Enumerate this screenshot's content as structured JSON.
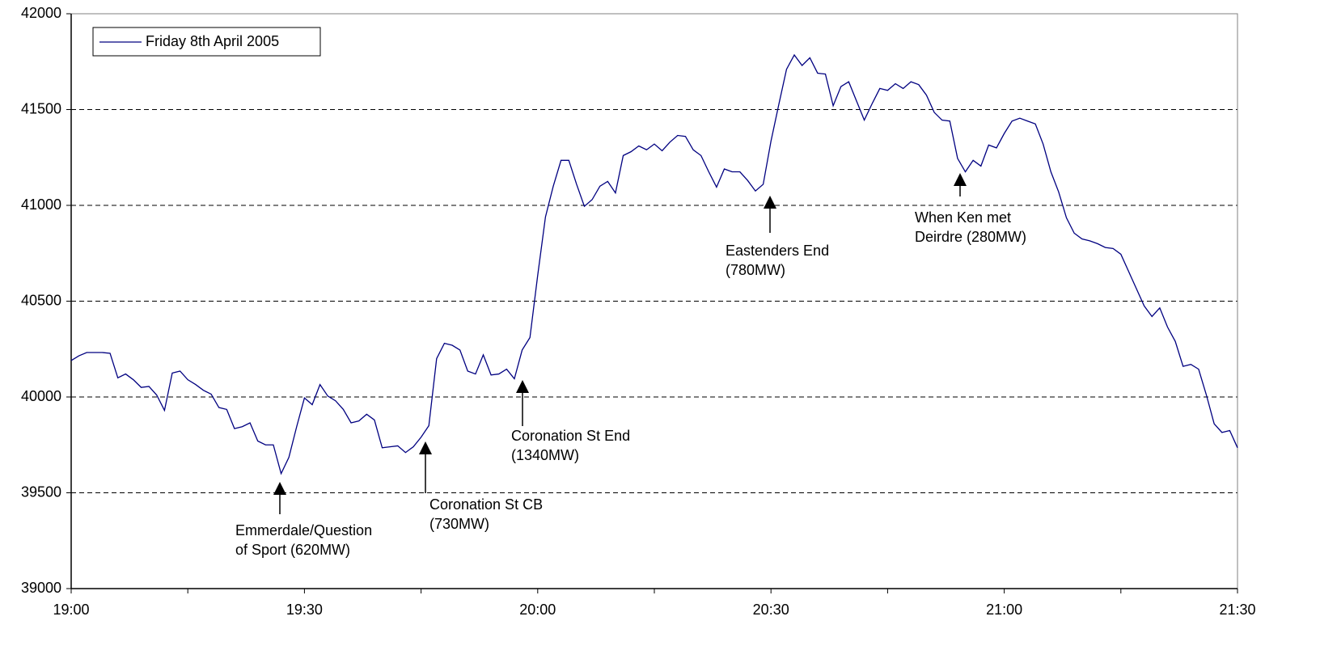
{
  "chart_data": {
    "type": "line",
    "x": [
      "19:00",
      "19:01",
      "19:02",
      "19:03",
      "19:04",
      "19:05",
      "19:06",
      "19:07",
      "19:08",
      "19:09",
      "19:10",
      "19:11",
      "19:12",
      "19:13",
      "19:14",
      "19:15",
      "19:16",
      "19:17",
      "19:18",
      "19:19",
      "19:20",
      "19:21",
      "19:22",
      "19:23",
      "19:24",
      "19:25",
      "19:26",
      "19:27",
      "19:28",
      "19:29",
      "19:30",
      "19:31",
      "19:32",
      "19:33",
      "19:34",
      "19:35",
      "19:36",
      "19:37",
      "19:38",
      "19:39",
      "19:40",
      "19:41",
      "19:42",
      "19:43",
      "19:44",
      "19:45",
      "19:46",
      "19:47",
      "19:48",
      "19:49",
      "19:50",
      "19:51",
      "19:52",
      "19:53",
      "19:54",
      "19:55",
      "19:56",
      "19:57",
      "19:58",
      "19:59",
      "20:00",
      "20:01",
      "20:02",
      "20:03",
      "20:04",
      "20:05",
      "20:06",
      "20:07",
      "20:08",
      "20:09",
      "20:10",
      "20:11",
      "20:12",
      "20:13",
      "20:14",
      "20:15",
      "20:16",
      "20:17",
      "20:18",
      "20:19",
      "20:20",
      "20:21",
      "20:22",
      "20:23",
      "20:24",
      "20:25",
      "20:26",
      "20:27",
      "20:28",
      "20:29",
      "20:30",
      "20:31",
      "20:32",
      "20:33",
      "20:34",
      "20:35",
      "20:36",
      "20:37",
      "20:38",
      "20:39",
      "20:40",
      "20:41",
      "20:42",
      "20:43",
      "20:44",
      "20:45",
      "20:46",
      "20:47",
      "20:48",
      "20:49",
      "20:50",
      "20:51",
      "20:52",
      "20:53",
      "20:54",
      "20:55",
      "20:56",
      "20:57",
      "20:58",
      "20:59",
      "21:00",
      "21:01",
      "21:02",
      "21:03",
      "21:04",
      "21:05",
      "21:06",
      "21:07",
      "21:08",
      "21:09",
      "21:10",
      "21:11",
      "21:12",
      "21:13",
      "21:14",
      "21:15",
      "21:16",
      "21:17",
      "21:18",
      "21:19",
      "21:20",
      "21:21",
      "21:22",
      "21:23",
      "21:24",
      "21:25",
      "21:26",
      "21:27",
      "21:28",
      "21:29",
      "21:30"
    ],
    "series": [
      {
        "name": "Friday 8th April 2005",
        "color": "#000080",
        "values": [
          40190,
          40215,
          40232,
          40232,
          40232,
          40228,
          40100,
          40120,
          40090,
          40050,
          40055,
          40010,
          39930,
          40125,
          40135,
          40090,
          40065,
          40035,
          40015,
          39945,
          39935,
          39835,
          39845,
          39865,
          39770,
          39750,
          39750,
          39600,
          39685,
          39845,
          39995,
          39960,
          40065,
          40005,
          39980,
          39935,
          39865,
          39875,
          39910,
          39880,
          39735,
          39740,
          39745,
          39710,
          39740,
          39790,
          39850,
          40200,
          40280,
          40270,
          40245,
          40135,
          40120,
          40220,
          40115,
          40120,
          40145,
          40095,
          40245,
          40310,
          40635,
          40940,
          41100,
          41235,
          41235,
          41110,
          40995,
          41030,
          41100,
          41125,
          41065,
          41260,
          41280,
          41310,
          41290,
          41320,
          41285,
          41330,
          41365,
          41360,
          41290,
          41260,
          41175,
          41095,
          41190,
          41175,
          41175,
          41130,
          41075,
          41110,
          41335,
          41525,
          41710,
          41785,
          41730,
          41770,
          41690,
          41685,
          41520,
          41620,
          41645,
          41545,
          41445,
          41530,
          41610,
          41600,
          41635,
          41610,
          41645,
          41630,
          41575,
          41485,
          41445,
          41440,
          41245,
          41175,
          41235,
          41205,
          41315,
          41300,
          41375,
          41440,
          41455,
          41440,
          41425,
          41320,
          41175,
          41070,
          40935,
          40855,
          40825,
          40815,
          40800,
          40780,
          40775,
          40745,
          40655,
          40565,
          40475,
          40420,
          40465,
          40365,
          40290,
          40160,
          40170,
          40145,
          40010,
          39860,
          39815,
          39825,
          39735
        ]
      }
    ],
    "xlim": [
      "19:00",
      "21:30"
    ],
    "xticks": [
      "19:00",
      "19:30",
      "20:00",
      "20:30",
      "21:00",
      "21:30"
    ],
    "xminor_ticks": [
      "19:15",
      "19:45",
      "20:15",
      "20:45",
      "21:15"
    ],
    "ylim": [
      39000,
      42000
    ],
    "yticks": [
      39000,
      39500,
      40000,
      40500,
      41000,
      41500,
      42000
    ],
    "grid": true,
    "legend": "upper left",
    "annotations": [
      {
        "lines": [
          "Emmerdale/Question",
          "of Sport (620MW)"
        ]
      },
      {
        "lines": [
          "Coronation St CB",
          "(730MW)"
        ]
      },
      {
        "lines": [
          "Coronation St End",
          "(1340MW)"
        ]
      },
      {
        "lines": [
          "Eastenders End",
          "(780MW)"
        ]
      },
      {
        "lines": [
          "When Ken met",
          "Deirdre (280MW)"
        ]
      }
    ]
  }
}
